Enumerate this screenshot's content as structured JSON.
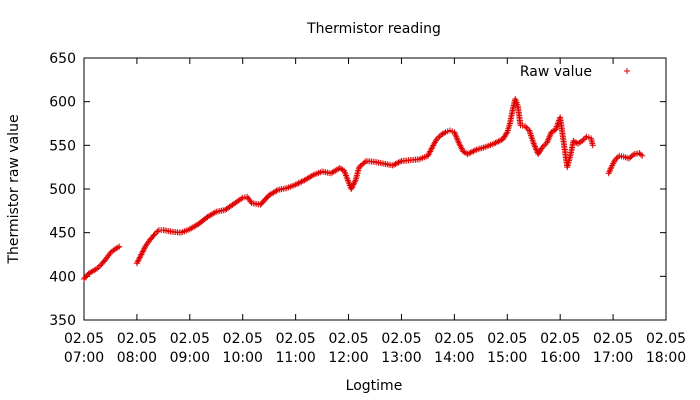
{
  "chart_data": {
    "type": "scatter",
    "title": "Thermistor reading",
    "xlabel": "Logtime",
    "ylabel": "Thermistor raw value",
    "xlim": [
      "02.05 07:00",
      "02.05 18:00"
    ],
    "ylim": [
      350,
      650
    ],
    "x_ticks": [
      "02.05 07:00",
      "02.05 08:00",
      "02.05 09:00",
      "02.05 10:00",
      "02.05 11:00",
      "02.05 12:00",
      "02.05 13:00",
      "02.05 14:00",
      "02.05 15:00",
      "02.05 16:00",
      "02.05 17:00",
      "02.05 18:00"
    ],
    "y_ticks": [
      350,
      400,
      450,
      500,
      550,
      600,
      650
    ],
    "grid": false,
    "legend": "top-right",
    "colors": {
      "series": "#e00000",
      "axes": "#000000"
    },
    "series": [
      {
        "name": "Raw value",
        "marker": "plus",
        "points": [
          [
            "07:00",
            397
          ],
          [
            "07:05",
            403
          ],
          [
            "07:10",
            406
          ],
          [
            "07:15",
            409
          ],
          [
            "07:20",
            414
          ],
          [
            "07:25",
            420
          ],
          [
            "07:30",
            427
          ],
          [
            "07:35",
            431
          ],
          [
            "07:40",
            434
          ],
          [
            "08:00",
            415
          ],
          [
            "08:05",
            425
          ],
          [
            "08:10",
            435
          ],
          [
            "08:15",
            442
          ],
          [
            "08:20",
            448
          ],
          [
            "08:25",
            453
          ],
          [
            "08:30",
            453
          ],
          [
            "08:40",
            451
          ],
          [
            "08:50",
            450
          ],
          [
            "09:00",
            454
          ],
          [
            "09:10",
            460
          ],
          [
            "09:20",
            468
          ],
          [
            "09:30",
            474
          ],
          [
            "09:40",
            476
          ],
          [
            "09:50",
            483
          ],
          [
            "10:00",
            490
          ],
          [
            "10:05",
            491
          ],
          [
            "10:10",
            484
          ],
          [
            "10:20",
            482
          ],
          [
            "10:30",
            493
          ],
          [
            "10:40",
            499
          ],
          [
            "10:50",
            501
          ],
          [
            "11:00",
            505
          ],
          [
            "11:10",
            510
          ],
          [
            "11:20",
            516
          ],
          [
            "11:30",
            520
          ],
          [
            "11:40",
            518
          ],
          [
            "11:50",
            524
          ],
          [
            "11:55",
            521
          ],
          [
            "12:00",
            508
          ],
          [
            "12:03",
            500
          ],
          [
            "12:08",
            510
          ],
          [
            "12:12",
            525
          ],
          [
            "12:20",
            532
          ],
          [
            "12:30",
            531
          ],
          [
            "12:40",
            529
          ],
          [
            "12:50",
            527
          ],
          [
            "13:00",
            532
          ],
          [
            "13:10",
            533
          ],
          [
            "13:20",
            534
          ],
          [
            "13:30",
            538
          ],
          [
            "13:35",
            548
          ],
          [
            "13:40",
            557
          ],
          [
            "13:45",
            562
          ],
          [
            "13:50",
            565
          ],
          [
            "13:55",
            567
          ],
          [
            "14:00",
            565
          ],
          [
            "14:05",
            553
          ],
          [
            "14:10",
            543
          ],
          [
            "14:15",
            540
          ],
          [
            "14:25",
            545
          ],
          [
            "14:35",
            548
          ],
          [
            "14:45",
            552
          ],
          [
            "14:55",
            557
          ],
          [
            "15:00",
            565
          ],
          [
            "15:03",
            575
          ],
          [
            "15:06",
            590
          ],
          [
            "15:09",
            603
          ],
          [
            "15:12",
            595
          ],
          [
            "15:15",
            573
          ],
          [
            "15:20",
            572
          ],
          [
            "15:25",
            567
          ],
          [
            "15:30",
            552
          ],
          [
            "15:35",
            540
          ],
          [
            "15:40",
            548
          ],
          [
            "15:45",
            553
          ],
          [
            "15:50",
            565
          ],
          [
            "15:55",
            568
          ],
          [
            "16:00",
            582
          ],
          [
            "16:08",
            525
          ],
          [
            "16:12",
            540
          ],
          [
            "16:15",
            555
          ],
          [
            "16:20",
            552
          ],
          [
            "16:25",
            555
          ],
          [
            "16:30",
            560
          ],
          [
            "16:35",
            558
          ],
          [
            "16:37",
            550
          ],
          [
            "16:55",
            518
          ],
          [
            "16:58",
            525
          ],
          [
            "17:02",
            533
          ],
          [
            "17:07",
            538
          ],
          [
            "17:12",
            537
          ],
          [
            "17:18",
            535
          ],
          [
            "17:24",
            540
          ],
          [
            "17:30",
            541
          ],
          [
            "17:33",
            538
          ]
        ]
      }
    ]
  }
}
